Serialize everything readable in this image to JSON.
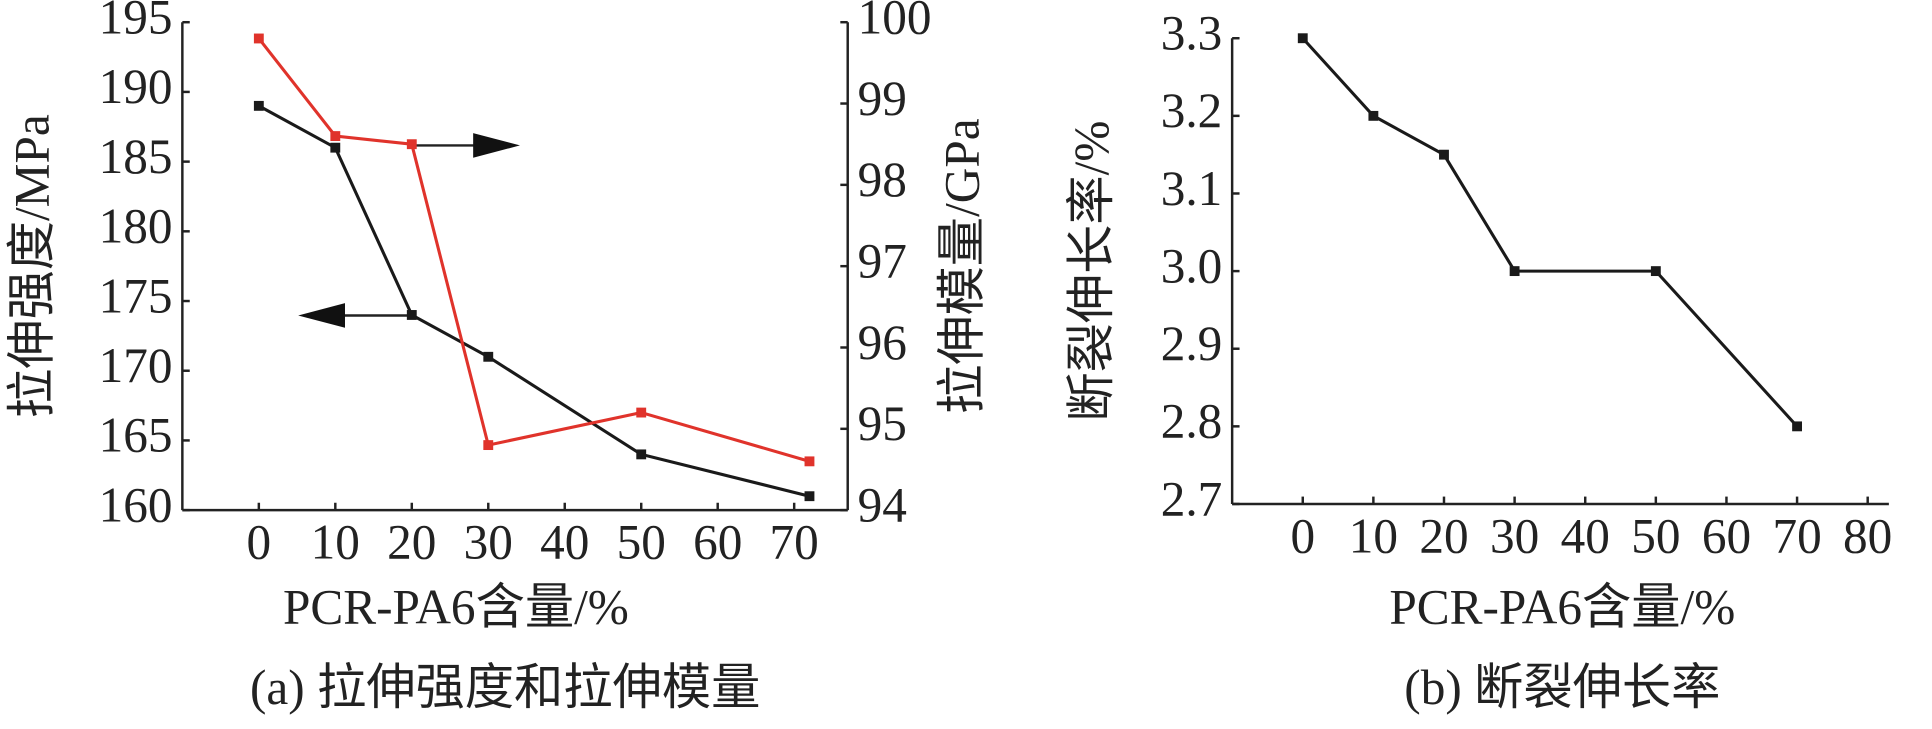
{
  "chart_data": [
    {
      "type": "line",
      "caption": "(a) 拉伸强度和拉伸模量",
      "x_label": "PCR-PA6含量/%",
      "y_label": "拉伸强度/MPa",
      "y2_label": "拉伸模量/GPa",
      "x": [
        0,
        10,
        20,
        30,
        50,
        72
      ],
      "series": [
        {
          "name": "拉伸强度",
          "color": "#1a1a1a",
          "values": [
            189,
            186,
            174,
            171,
            164,
            161
          ]
        },
        {
          "name": "拉伸模量",
          "color": "#e0332b",
          "axis": "y2",
          "values": [
            99.8,
            98.6,
            98.5,
            94.8,
            95.2,
            94.6
          ]
        }
      ],
      "xlim": [
        -10,
        77
      ],
      "xticks": [
        0,
        10,
        20,
        30,
        40,
        50,
        60,
        70
      ],
      "ylim": [
        160,
        195
      ],
      "yticks": [
        160,
        165,
        170,
        175,
        180,
        185,
        190,
        195
      ],
      "y2lim": [
        94,
        100
      ],
      "y2ticks": [
        94,
        95,
        96,
        97,
        98,
        99,
        100
      ]
    },
    {
      "type": "line",
      "caption": "(b) 断裂伸长率",
      "x_label": "PCR-PA6含量/%",
      "y_label": "断裂伸长率/%",
      "x": [
        0,
        10,
        20,
        30,
        50,
        70
      ],
      "series": [
        {
          "name": "断裂伸长率",
          "color": "#1a1a1a",
          "values": [
            3.3,
            3.2,
            3.15,
            3.0,
            3.0,
            2.8
          ]
        }
      ],
      "xlim": [
        -10,
        83
      ],
      "xticks": [
        0,
        10,
        20,
        30,
        40,
        50,
        60,
        70,
        80
      ],
      "ylim": [
        2.7,
        3.3
      ],
      "yticks": [
        2.7,
        2.8,
        2.9,
        {
          "value": 3.0,
          "label": "3.0"
        },
        3.1,
        3.2,
        3.3
      ]
    }
  ]
}
